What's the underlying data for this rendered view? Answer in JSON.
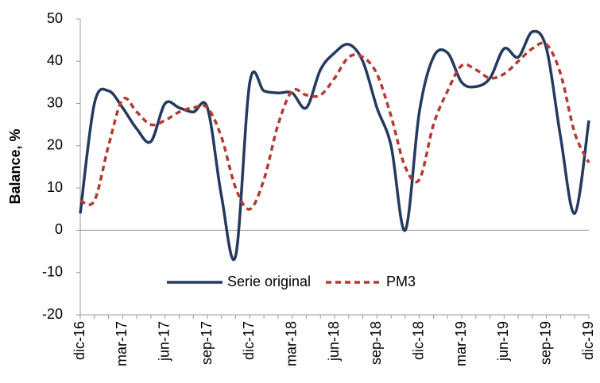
{
  "chart_data": {
    "type": "line",
    "y_label": "Balance, %",
    "categories": [
      "dic-16",
      null,
      null,
      "mar-17",
      null,
      null,
      "jun-17",
      null,
      null,
      "sep-17",
      null,
      null,
      "dic-17",
      null,
      null,
      "mar-18",
      null,
      null,
      "jun-18",
      null,
      null,
      "sep-18",
      null,
      null,
      "dic-18",
      null,
      null,
      "mar-19",
      null,
      null,
      "jun-19",
      null,
      null,
      "sep-19",
      null,
      null,
      "dic-19"
    ],
    "series": [
      {
        "name": "Serie original",
        "color": "#243a5e",
        "dash": false,
        "values": [
          4,
          30,
          33,
          29,
          24,
          21,
          30,
          29,
          28,
          29,
          8,
          -6,
          35,
          33,
          32.5,
          32.5,
          29,
          38,
          42,
          44,
          40,
          29,
          20,
          0,
          28,
          41,
          42,
          35,
          34,
          36,
          43,
          41,
          47,
          43,
          22,
          4,
          26
        ]
      },
      {
        "name": "PM3",
        "color": "#b33b32",
        "dash": true,
        "values": [
          7,
          7,
          20,
          31,
          28,
          25,
          26,
          28,
          29,
          29,
          22,
          10,
          5,
          12,
          25,
          33,
          32,
          32,
          36,
          41,
          41,
          37,
          27,
          15,
          12,
          25,
          33,
          39,
          38,
          36,
          37,
          40,
          43,
          44,
          37,
          23,
          16
        ]
      }
    ],
    "ylim": [
      -20,
      50
    ],
    "yticks": [
      -20,
      -10,
      0,
      10,
      20,
      30,
      40,
      50
    ],
    "legend": "bottom"
  }
}
